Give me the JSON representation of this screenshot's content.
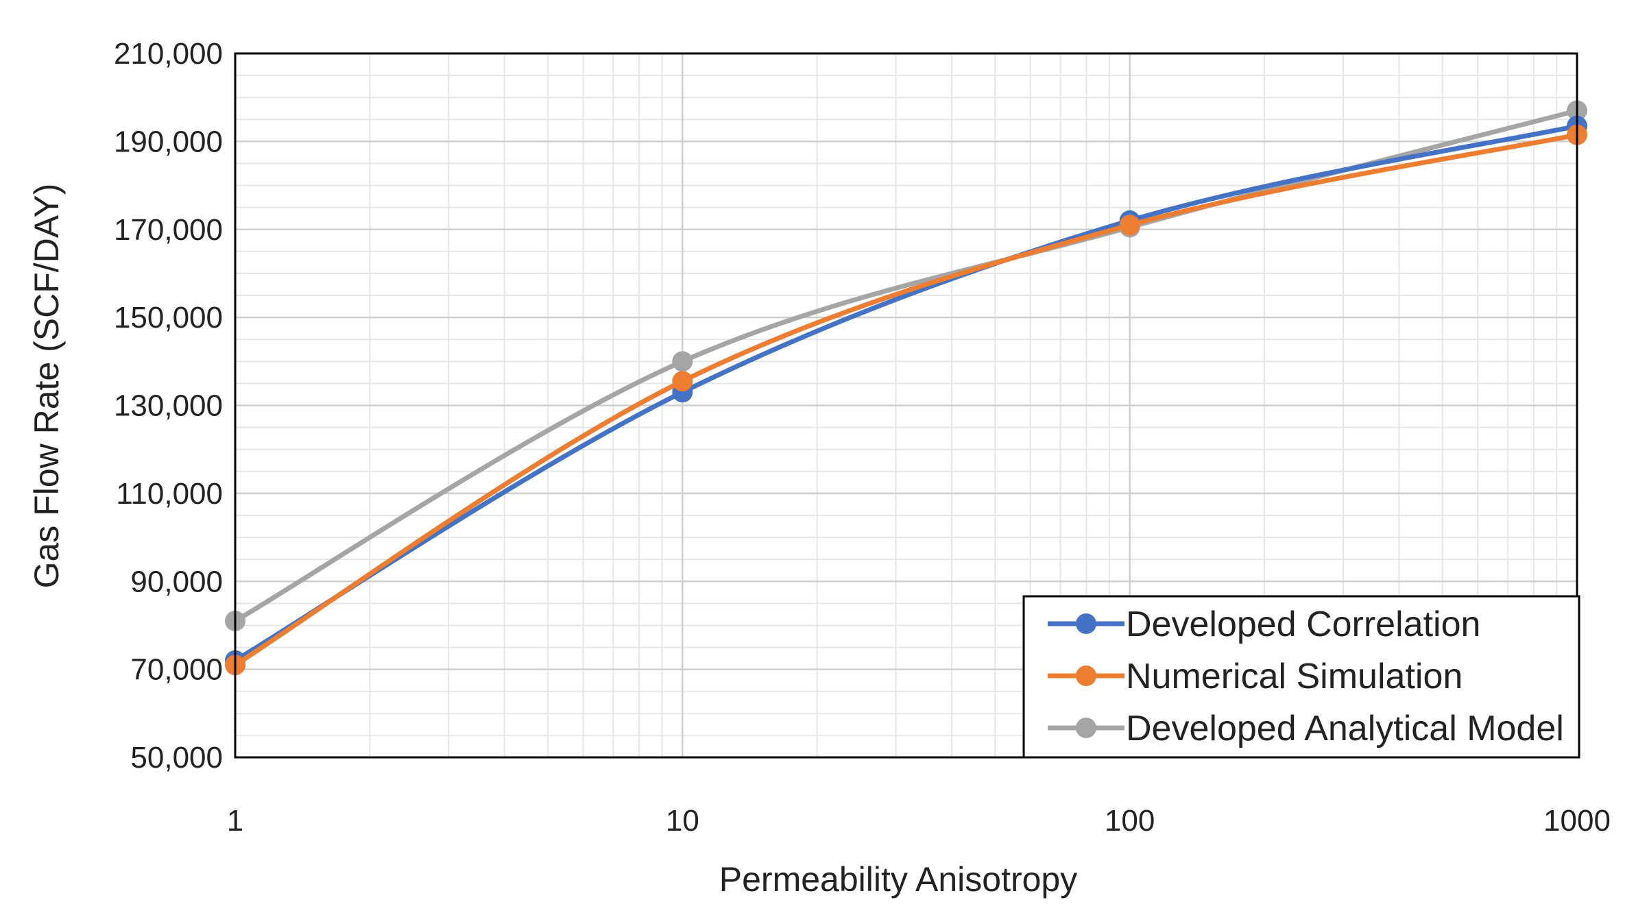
{
  "chart_data": {
    "type": "line",
    "title": "",
    "xlabel": "Permeability Anisotropy",
    "ylabel": "Gas Flow Rate (SCF/DAY)",
    "xscale": "log",
    "xlim": [
      1,
      1000
    ],
    "ylim": [
      50000,
      210000
    ],
    "x": [
      1,
      10,
      100,
      1000
    ],
    "x_ticks": [
      "1",
      "10",
      "100",
      "1000"
    ],
    "y_ticks": [
      "50,000",
      "70,000",
      "90,000",
      "110,000",
      "130,000",
      "150,000",
      "170,000",
      "190,000",
      "210,000"
    ],
    "grid": true,
    "legend_position": "bottom-right",
    "series": [
      {
        "name": "Developed Correlation",
        "color": "#4472C4",
        "values": [
          72000,
          133000,
          172000,
          193500
        ]
      },
      {
        "name": "Numerical Simulation",
        "color": "#ED7D31",
        "values": [
          71000,
          135500,
          171000,
          191500
        ]
      },
      {
        "name": "Developed Analytical Model",
        "color": "#A5A5A5",
        "values": [
          81000,
          140000,
          170500,
          197000
        ]
      }
    ]
  }
}
